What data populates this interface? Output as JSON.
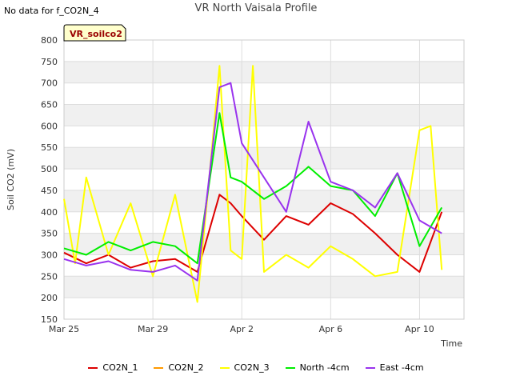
{
  "note": "No data for f_CO2N_4",
  "site_label": "VR_soilco2",
  "chart_data": {
    "type": "line",
    "title": "VR North Vaisala Profile",
    "xlabel": "Time",
    "ylabel": "Soil CO2 (mV)",
    "ylim": [
      150,
      800
    ],
    "yticks": [
      150,
      200,
      250,
      300,
      350,
      400,
      450,
      500,
      550,
      600,
      650,
      700,
      750,
      800
    ],
    "xlim": [
      "Mar 25",
      "Apr 12"
    ],
    "xticks": [
      "Mar 25",
      "Mar 29",
      "Apr 2",
      "Apr 6",
      "Apr 10"
    ],
    "grid": true,
    "legend_position": "bottom",
    "series": [
      {
        "name": "CO2N_1",
        "color": "#dd0000",
        "x": [
          "Mar 25",
          "Mar 26",
          "Mar 27",
          "Mar 28",
          "Mar 29",
          "Mar 30",
          "Mar 31",
          "Apr 1",
          "Apr 1 12:00",
          "Apr 2",
          "Apr 3",
          "Apr 4",
          "Apr 5",
          "Apr 6",
          "Apr 7",
          "Apr 8",
          "Apr 9",
          "Apr 10",
          "Apr 11"
        ],
        "values": [
          305,
          280,
          300,
          270,
          285,
          290,
          260,
          440,
          420,
          390,
          335,
          390,
          370,
          420,
          395,
          350,
          300,
          260,
          400
        ]
      },
      {
        "name": "CO2N_2",
        "color": "#ff9900",
        "x": [],
        "values": []
      },
      {
        "name": "CO2N_3",
        "color": "#ffff00",
        "x": [
          "Mar 25",
          "Mar 25 12:00",
          "Mar 26",
          "Mar 27",
          "Mar 28",
          "Mar 29",
          "Mar 30",
          "Mar 31",
          "Mar 31 12:00",
          "Apr 1",
          "Apr 1 12:00",
          "Apr 2",
          "Apr 2 12:00",
          "Apr 3",
          "Apr 4",
          "Apr 5",
          "Apr 6",
          "Apr 7",
          "Apr 8",
          "Apr 9",
          "Apr 10",
          "Apr 10 12:00",
          "Apr 11"
        ],
        "values": [
          430,
          280,
          480,
          300,
          420,
          250,
          440,
          190,
          460,
          740,
          310,
          290,
          740,
          260,
          300,
          270,
          320,
          290,
          250,
          260,
          590,
          600,
          265
        ]
      },
      {
        "name": "North -4cm",
        "color": "#00ee00",
        "x": [
          "Mar 25",
          "Mar 26",
          "Mar 27",
          "Mar 28",
          "Mar 29",
          "Mar 30",
          "Mar 31",
          "Apr 1",
          "Apr 1 12:00",
          "Apr 2",
          "Apr 3",
          "Apr 4",
          "Apr 5",
          "Apr 6",
          "Apr 7",
          "Apr 8",
          "Apr 9",
          "Apr 10",
          "Apr 11"
        ],
        "values": [
          315,
          300,
          330,
          310,
          330,
          320,
          280,
          630,
          480,
          470,
          430,
          460,
          505,
          460,
          450,
          390,
          490,
          320,
          410
        ]
      },
      {
        "name": "East -4cm",
        "color": "#9933ee",
        "x": [
          "Mar 25",
          "Mar 26",
          "Mar 27",
          "Mar 28",
          "Mar 29",
          "Mar 30",
          "Mar 31",
          "Apr 1",
          "Apr 1 12:00",
          "Apr 2",
          "Apr 3",
          "Apr 4",
          "Apr 5",
          "Apr 6",
          "Apr 7",
          "Apr 8",
          "Apr 9",
          "Apr 10",
          "Apr 11"
        ],
        "values": [
          290,
          275,
          285,
          265,
          260,
          275,
          240,
          690,
          700,
          560,
          480,
          400,
          610,
          470,
          450,
          410,
          490,
          380,
          350
        ]
      }
    ]
  }
}
